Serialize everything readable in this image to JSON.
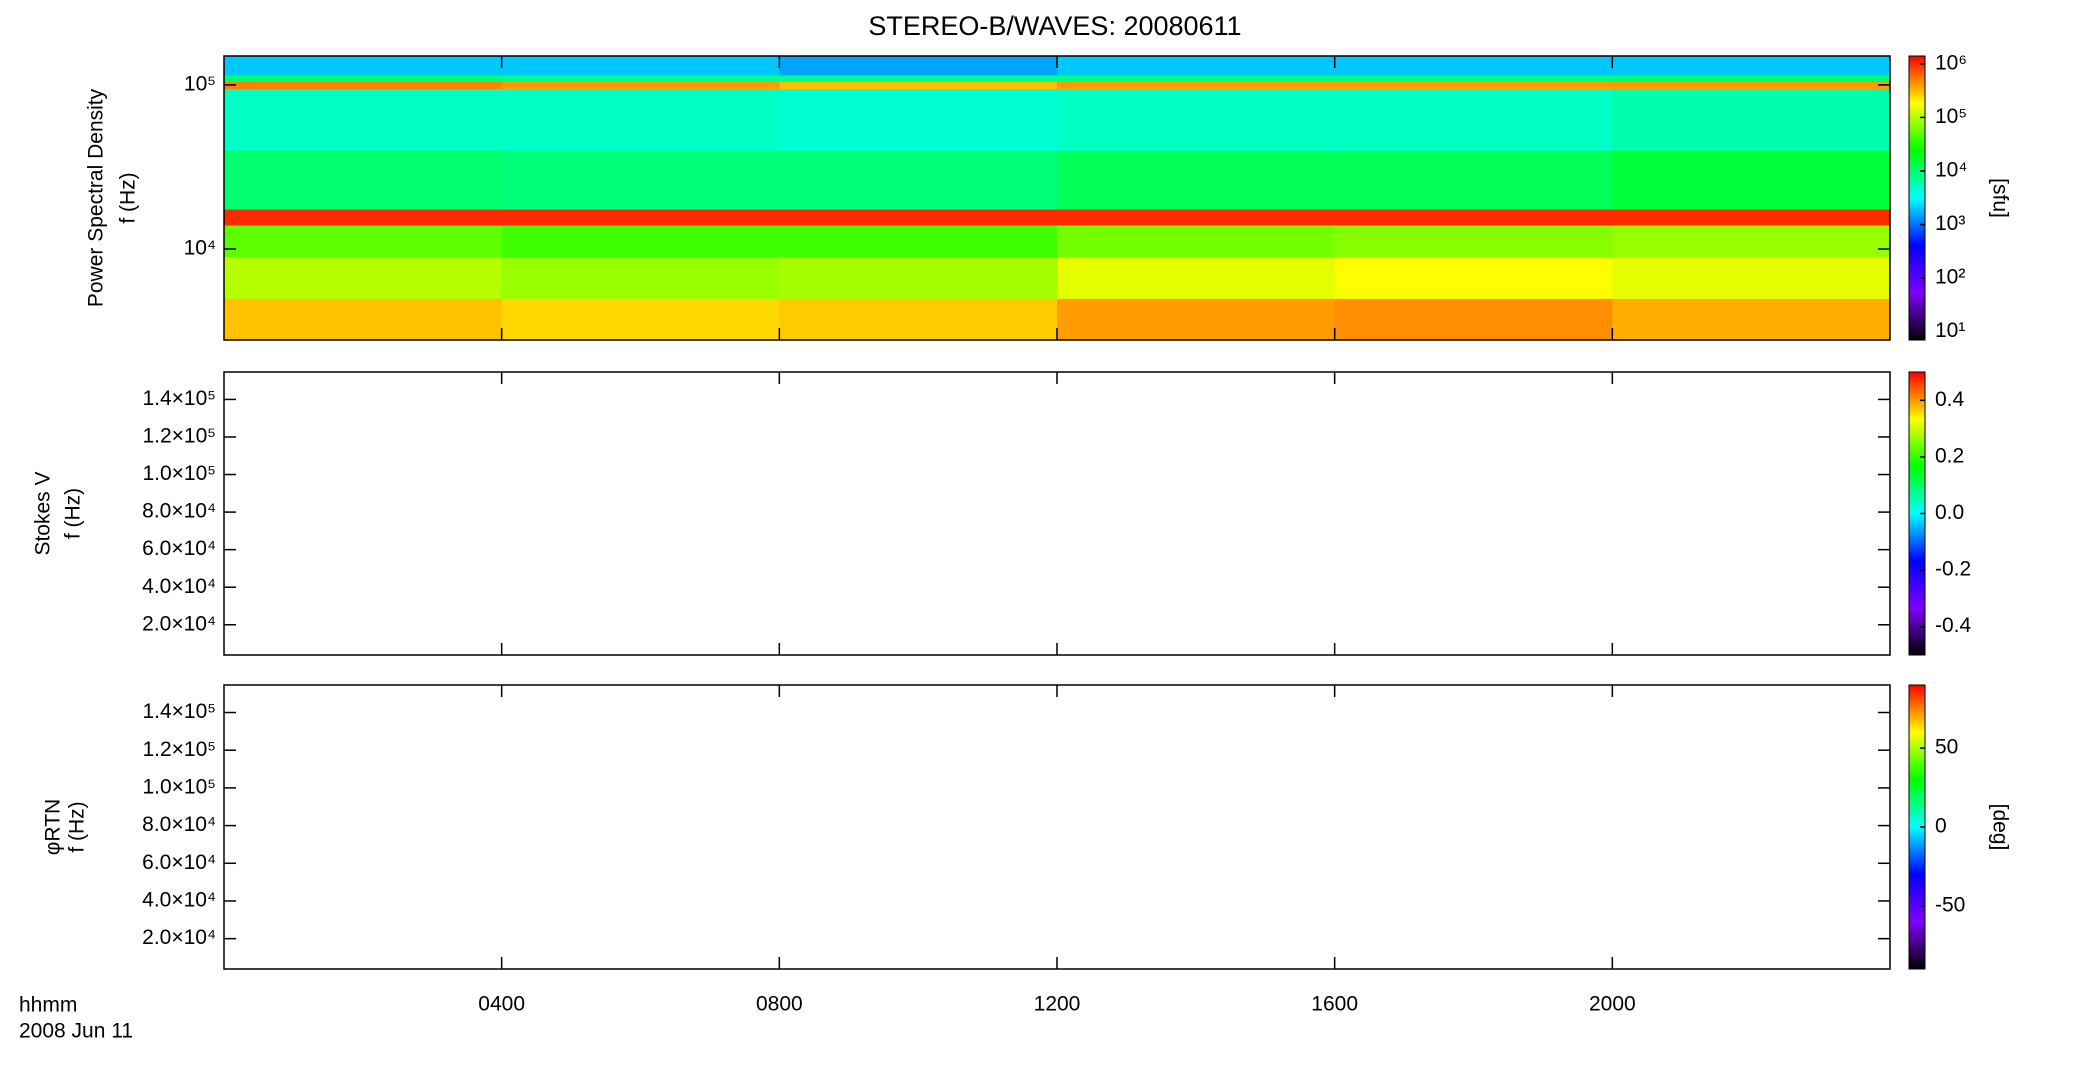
{
  "chart_data": [
    {
      "type": "heatmap",
      "title": "STEREO-B/WAVES: 20080611",
      "ylabel": [
        "Power Spectral Density",
        "f (Hz)"
      ],
      "colorbar_label": "[sfu]",
      "yscale": "log",
      "ylim": [
        2790,
        150000
      ],
      "yticks": [
        {
          "value": 10000,
          "label": "10⁴"
        },
        {
          "value": 100000,
          "label": "10⁵"
        }
      ],
      "xlim": [
        0,
        24
      ],
      "xticks": [
        4,
        8,
        12,
        16,
        20
      ],
      "x_edges": [
        0,
        4,
        8,
        12,
        16,
        20,
        24
      ],
      "y_edges": [
        2790,
        5000,
        9000,
        14000,
        17500,
        40000,
        95000,
        105000,
        115000,
        150000
      ],
      "values": [
        [
          300000,
          250000,
          280000,
          400000,
          450000,
          350000
        ],
        [
          100000,
          80000,
          90000,
          150000,
          180000,
          150000
        ],
        [
          50000,
          40000,
          40000,
          60000,
          70000,
          80000
        ],
        [
          1000000,
          1000000,
          1000000,
          1000000,
          1000000,
          1000000
        ],
        [
          10000,
          9000,
          9000,
          12000,
          12000,
          15000
        ],
        [
          5000,
          5000,
          4500,
          5000,
          5000,
          6000
        ],
        [
          500000,
          400000,
          300000,
          400000,
          400000,
          400000
        ],
        [
          10000,
          8000,
          8000,
          9000,
          9000,
          10000
        ],
        [
          2000,
          2000,
          1500,
          2000,
          2000,
          2000
        ]
      ],
      "cscale": "log",
      "clim": [
        7,
        1400000
      ],
      "cticks": [
        {
          "value": 10,
          "label": "10¹"
        },
        {
          "value": 100,
          "label": "10²"
        },
        {
          "value": 1000,
          "label": "10³"
        },
        {
          "value": 10000,
          "label": "10⁴"
        },
        {
          "value": 100000,
          "label": "10⁵"
        },
        {
          "value": 1000000,
          "label": "10⁶"
        }
      ],
      "colormap": [
        "#000000",
        "#7f00ff",
        "#0000ff",
        "#00ffff",
        "#00ff00",
        "#ffff00",
        "#ff0000"
      ]
    },
    {
      "type": "heatmap",
      "ylabel": [
        "Stokes V",
        "f (Hz)"
      ],
      "ylim": [
        3900,
        154600
      ],
      "yticks": [
        {
          "value": 20000,
          "label": "2.0×10⁴"
        },
        {
          "value": 40000,
          "label": "4.0×10⁴"
        },
        {
          "value": 60000,
          "label": "6.0×10⁴"
        },
        {
          "value": 80000,
          "label": "8.0×10⁴"
        },
        {
          "value": 100000,
          "label": "1.0×10⁵"
        },
        {
          "value": 120000,
          "label": "1.2×10⁵"
        },
        {
          "value": 140000,
          "label": "1.4×10⁵"
        }
      ],
      "xlim": [
        0,
        24
      ],
      "xticks": [
        4,
        8,
        12,
        16,
        20
      ],
      "clim": [
        -0.5,
        0.5
      ],
      "cticks": [
        -0.4,
        -0.2,
        {
          "value": 0,
          "label": "0.0"
        },
        0.2,
        0.4
      ],
      "colormap": [
        "#000000",
        "#7f00ff",
        "#0000ff",
        "#00ffff",
        "#00ff00",
        "#ffff00",
        "#ff0000"
      ]
    },
    {
      "type": "heatmap",
      "ylabel": [
        "φRTN",
        "f (Hz)"
      ],
      "colorbar_label": "[deg]",
      "ylim": [
        3900,
        154600
      ],
      "yticks": [
        {
          "value": 20000,
          "label": "2.0×10⁴"
        },
        {
          "value": 40000,
          "label": "4.0×10⁴"
        },
        {
          "value": 60000,
          "label": "6.0×10⁴"
        },
        {
          "value": 80000,
          "label": "8.0×10⁴"
        },
        {
          "value": 100000,
          "label": "1.0×10⁵"
        },
        {
          "value": 120000,
          "label": "1.2×10⁵"
        },
        {
          "value": 140000,
          "label": "1.4×10⁵"
        }
      ],
      "xlim": [
        0,
        24
      ],
      "xticks": [
        {
          "value": 4,
          "label": "0400"
        },
        {
          "value": 8,
          "label": "0800"
        },
        {
          "value": 12,
          "label": "1200"
        },
        {
          "value": 16,
          "label": "1600"
        },
        {
          "value": 20,
          "label": "2000"
        }
      ],
      "xlabel": [
        "hhmm",
        "2008 Jun 11"
      ],
      "clim": [
        -90,
        90
      ],
      "cticks": [
        -50,
        0,
        50
      ],
      "colormap": [
        "#000000",
        "#7f00ff",
        "#0000ff",
        "#00ffff",
        "#00ff00",
        "#ffff00",
        "#ff0000"
      ]
    }
  ]
}
